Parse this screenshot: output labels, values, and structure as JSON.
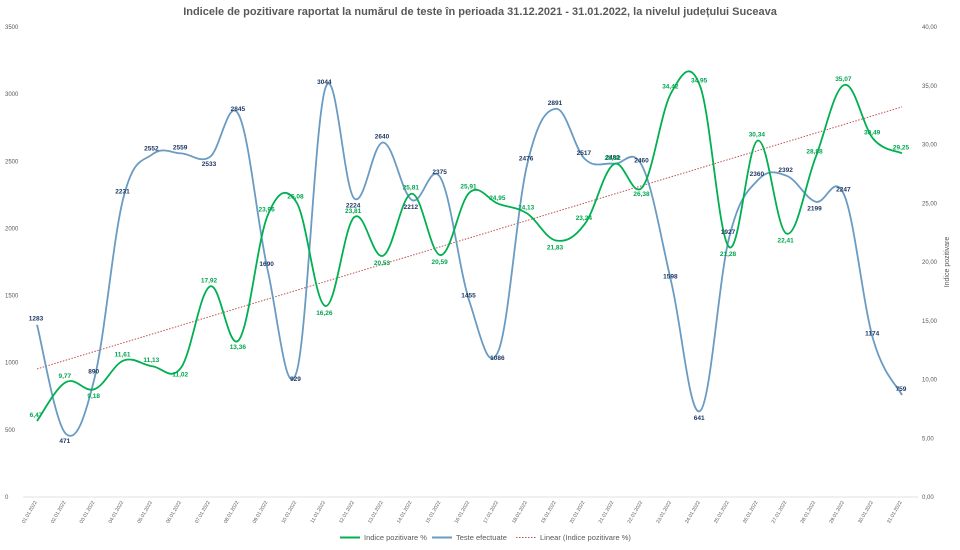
{
  "chart_data": {
    "type": "line",
    "title": "Indicele de pozitivare  raportat la numărul de teste în perioada  31.12.2021 - 31.01.2022, la nivelul județului  Suceava",
    "categories": [
      "01.01.2022",
      "02.01.2022",
      "03.01.2022",
      "04.01.2022",
      "05.01.2022",
      "06.01.2022",
      "07.01.2022",
      "08.01.2022",
      "09.01.2022",
      "10.01.2022",
      "11.01.2022",
      "12.01.2022",
      "13.01.2022",
      "14.01.2022",
      "15.01.2022",
      "16.01.2022",
      "17.01.2022",
      "18.01.2022",
      "19.01.2022",
      "20.01.2022",
      "21.01.2022",
      "22.01.2022",
      "23.01.2022",
      "24.01.2022",
      "25.01.2022",
      "26.01.2022",
      "27.01.2022",
      "28.01.2022",
      "29.01.2022",
      "30.01.2022",
      "31.01.2022"
    ],
    "y_left_ticks": [
      "0",
      "500",
      "1000",
      "1500",
      "2000",
      "2500",
      "3000",
      "3500"
    ],
    "y_right_ticks": [
      "0,00",
      "5,00",
      "10,00",
      "15,00",
      "20,00",
      "25,00",
      "30,00",
      "35,00",
      "40,00"
    ],
    "ylim_left": [
      0,
      3500
    ],
    "ylim_right": [
      0,
      40
    ],
    "ylabel_right": "Indice pozitivare",
    "series": [
      {
        "name": "Indice pozitivare %",
        "axis": "right",
        "color": "#00b050",
        "values": [
          6.47,
          9.77,
          9.18,
          11.61,
          11.13,
          11.02,
          17.92,
          13.36,
          23.96,
          25.08,
          16.26,
          23.81,
          20.53,
          25.81,
          20.59,
          25.91,
          24.95,
          24.13,
          21.83,
          23.24,
          28.32,
          26.38,
          34.42,
          34.95,
          21.28,
          30.34,
          22.41,
          28.88,
          35.07,
          30.49,
          29.25
        ],
        "labels": [
          "6,47",
          "9,77",
          "9,18",
          "11,61",
          "11,13",
          "11,02",
          "17,92",
          "13,36",
          "23,96",
          "25,08",
          "16,26",
          "23,81",
          "20,53",
          "25,81",
          "20,59",
          "25,91",
          "24,95",
          "24,13",
          "21,83",
          "23,24",
          "28,32",
          "26,38",
          "34,42",
          "34,95",
          "21,28",
          "30,34",
          "22,41",
          "28,88",
          "35,07",
          "30,49",
          "29,25"
        ]
      },
      {
        "name": "Teste efectuate",
        "axis": "left",
        "color": "#6a9bc3",
        "values": [
          1283,
          471,
          890,
          2231,
          2552,
          2559,
          2533,
          2845,
          1690,
          929,
          3044,
          2224,
          2640,
          2212,
          2375,
          1455,
          1086,
          2476,
          2891,
          2517,
          2482,
          2460,
          1598,
          641,
          1927,
          2360,
          2392,
          2199,
          2247,
          1174,
          759
        ],
        "labels": [
          "1283",
          "471",
          "890",
          "2231",
          "2552",
          "2559",
          "2533",
          "2845",
          "1690",
          "929",
          "3044",
          "2224",
          "2640",
          "2212",
          "2375",
          "1455",
          "1086",
          "2476",
          "2891",
          "2517",
          "2482",
          "2460",
          "1598",
          "641",
          "1927",
          "2360",
          "2392",
          "2199",
          "2247",
          "1174",
          "759"
        ]
      },
      {
        "name": "Linear (Indice pozitivare %)",
        "axis": "right",
        "color": "#c0504d",
        "trend": [
          10.9,
          33.2
        ]
      }
    ]
  }
}
